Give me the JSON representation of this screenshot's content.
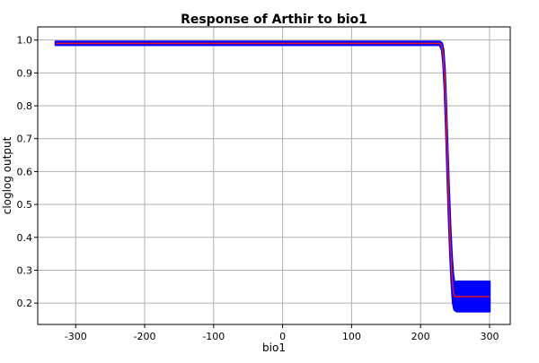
{
  "chart_data": {
    "type": "line",
    "title": "Response of Arthir to bio1",
    "xlabel": "bio1",
    "ylabel": "cloglog output",
    "xlim": [
      -355,
      330
    ],
    "ylim": [
      0.135,
      1.04
    ],
    "xticks": [
      -300,
      -200,
      -100,
      0,
      100,
      200,
      300
    ],
    "yticks": [
      0.2,
      0.3,
      0.4,
      0.5,
      0.6,
      0.7,
      0.8,
      0.9,
      1.0
    ],
    "xtick_labels": [
      "-300",
      "-200",
      "-100",
      "0",
      "100",
      "200",
      "300"
    ],
    "ytick_labels": [
      "0.2",
      "0.3",
      "0.4",
      "0.5",
      "0.6",
      "0.7",
      "0.8",
      "0.9",
      "1.0"
    ],
    "grid": true,
    "colors": {
      "mean": "#e8141e",
      "band": "#0000ff"
    },
    "series": [
      {
        "role": "mean",
        "x": [
          -329,
          228,
          231,
          233,
          235,
          237,
          239,
          241,
          243,
          245,
          247,
          249,
          252,
          300
        ],
        "y": [
          0.99,
          0.99,
          0.98,
          0.95,
          0.88,
          0.77,
          0.63,
          0.5,
          0.39,
          0.3,
          0.24,
          0.22,
          0.22,
          0.22
        ]
      },
      {
        "role": "band",
        "x": [
          -329,
          228,
          231,
          233,
          235,
          237,
          239,
          241,
          243,
          245,
          247,
          249,
          252,
          300
        ],
        "upper": [
          0.995,
          0.995,
          0.99,
          0.97,
          0.91,
          0.8,
          0.67,
          0.55,
          0.44,
          0.35,
          0.29,
          0.26,
          0.265,
          0.265
        ],
        "lower": [
          0.985,
          0.985,
          0.97,
          0.93,
          0.85,
          0.73,
          0.59,
          0.46,
          0.35,
          0.26,
          0.2,
          0.18,
          0.175,
          0.175
        ]
      }
    ]
  }
}
